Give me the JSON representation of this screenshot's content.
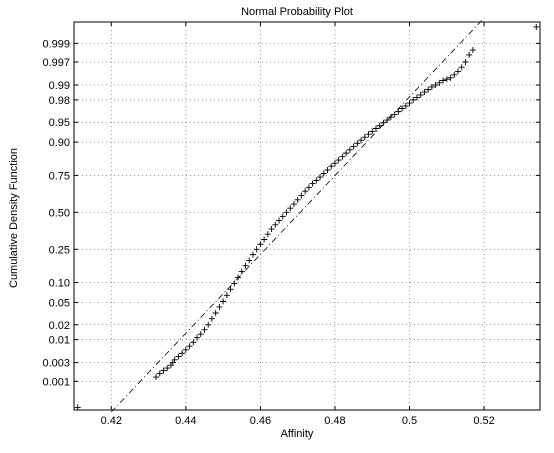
{
  "chart_data": {
    "type": "scatter",
    "title": "Normal Probability Plot",
    "xlabel": "Affinity",
    "ylabel": "Cumulative Density Function",
    "xlim": [
      0.41,
      0.535
    ],
    "x_ticks": [
      0.42,
      0.44,
      0.46,
      0.48,
      0.5,
      0.52
    ],
    "x_tick_labels": [
      "0.42",
      "0.44",
      "0.46",
      "0.48",
      "0.5",
      "0.52"
    ],
    "y_scale": "normal-probability",
    "ylim": [
      0.00015,
      0.99975
    ],
    "y_ticks": [
      0.001,
      0.003,
      0.01,
      0.02,
      0.05,
      0.1,
      0.25,
      0.5,
      0.75,
      0.9,
      0.95,
      0.98,
      0.99,
      0.997,
      0.999
    ],
    "y_tick_labels": [
      "0.001",
      "0.003",
      "0.01",
      "0.02",
      "0.05",
      "0.10",
      "0.25",
      "0.50",
      "0.75",
      "0.90",
      "0.95",
      "0.98",
      "0.99",
      "0.997",
      "0.999"
    ],
    "grid": true,
    "marker": "+",
    "reference_line": {
      "style": "dash-dot",
      "x": [
        0.42,
        0.52
      ],
      "y": [
        0.00013,
        0.99981
      ]
    },
    "points": [
      [
        0.411,
        0.00018
      ],
      [
        0.432,
        0.0013
      ],
      [
        0.433,
        0.0016
      ],
      [
        0.434,
        0.0019
      ],
      [
        0.435,
        0.0022
      ],
      [
        0.436,
        0.0026
      ],
      [
        0.4365,
        0.003
      ],
      [
        0.437,
        0.0035
      ],
      [
        0.438,
        0.0042
      ],
      [
        0.439,
        0.005
      ],
      [
        0.44,
        0.006
      ],
      [
        0.441,
        0.0072
      ],
      [
        0.442,
        0.0088
      ],
      [
        0.443,
        0.011
      ],
      [
        0.444,
        0.013
      ],
      [
        0.445,
        0.016
      ],
      [
        0.446,
        0.02
      ],
      [
        0.447,
        0.026
      ],
      [
        0.448,
        0.033
      ],
      [
        0.449,
        0.042
      ],
      [
        0.45,
        0.052
      ],
      [
        0.451,
        0.065
      ],
      [
        0.452,
        0.08
      ],
      [
        0.453,
        0.097
      ],
      [
        0.454,
        0.117
      ],
      [
        0.455,
        0.14
      ],
      [
        0.456,
        0.165
      ],
      [
        0.457,
        0.19
      ],
      [
        0.458,
        0.22
      ],
      [
        0.459,
        0.25
      ],
      [
        0.46,
        0.28
      ],
      [
        0.461,
        0.31
      ],
      [
        0.462,
        0.345
      ],
      [
        0.463,
        0.38
      ],
      [
        0.464,
        0.41
      ],
      [
        0.465,
        0.44
      ],
      [
        0.466,
        0.47
      ],
      [
        0.467,
        0.5
      ],
      [
        0.468,
        0.53
      ],
      [
        0.469,
        0.56
      ],
      [
        0.47,
        0.59
      ],
      [
        0.471,
        0.62
      ],
      [
        0.472,
        0.65
      ],
      [
        0.473,
        0.675
      ],
      [
        0.474,
        0.7
      ],
      [
        0.475,
        0.72
      ],
      [
        0.476,
        0.74
      ],
      [
        0.477,
        0.76
      ],
      [
        0.478,
        0.78
      ],
      [
        0.479,
        0.8
      ],
      [
        0.48,
        0.815
      ],
      [
        0.481,
        0.83
      ],
      [
        0.482,
        0.845
      ],
      [
        0.483,
        0.86
      ],
      [
        0.484,
        0.873
      ],
      [
        0.485,
        0.885
      ],
      [
        0.486,
        0.896
      ],
      [
        0.487,
        0.906
      ],
      [
        0.488,
        0.915
      ],
      [
        0.489,
        0.923
      ],
      [
        0.49,
        0.93
      ],
      [
        0.491,
        0.937
      ],
      [
        0.492,
        0.943
      ],
      [
        0.493,
        0.949
      ],
      [
        0.494,
        0.954
      ],
      [
        0.495,
        0.959
      ],
      [
        0.496,
        0.963
      ],
      [
        0.497,
        0.967
      ],
      [
        0.498,
        0.971
      ],
      [
        0.499,
        0.974
      ],
      [
        0.5,
        0.977
      ],
      [
        0.501,
        0.98
      ],
      [
        0.502,
        0.982
      ],
      [
        0.503,
        0.984
      ],
      [
        0.504,
        0.986
      ],
      [
        0.505,
        0.9875
      ],
      [
        0.506,
        0.989
      ],
      [
        0.507,
        0.99
      ],
      [
        0.508,
        0.991
      ],
      [
        0.509,
        0.992
      ],
      [
        0.51,
        0.9925
      ],
      [
        0.511,
        0.993
      ],
      [
        0.512,
        0.994
      ],
      [
        0.513,
        0.995
      ],
      [
        0.514,
        0.996
      ],
      [
        0.515,
        0.997
      ],
      [
        0.516,
        0.998
      ],
      [
        0.517,
        0.9985
      ],
      [
        0.534,
        0.99965
      ]
    ]
  }
}
